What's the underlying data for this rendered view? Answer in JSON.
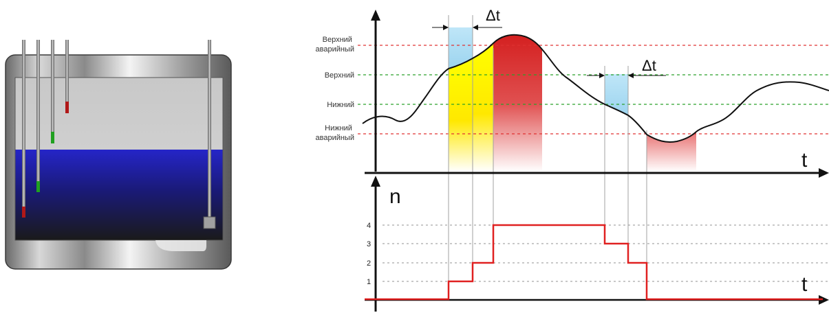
{
  "levels": {
    "upper_alarm": [
      "Верхний",
      "аварийный"
    ],
    "upper": [
      "Верхний"
    ],
    "lower": [
      "Нижний"
    ],
    "lower_alarm": [
      "Нижний",
      "аварийный"
    ]
  },
  "top_chart": {
    "t_label": "t",
    "delta_label": "Δt"
  },
  "bottom_chart": {
    "n_label": "n",
    "t_label": "t",
    "ticks": [
      "1",
      "2",
      "3",
      "4"
    ]
  },
  "colors": {
    "alarm_line": "#e03030",
    "normal_line": "#2aa02a",
    "step_line": "#e02020",
    "delay_fill": "#a8dcf4",
    "warning_fill": "#ffff00",
    "alarm_fill": "#d42020",
    "water": "#1a1ac0"
  },
  "icons": [
    "tank-icon",
    "level-probe-icon"
  ]
}
